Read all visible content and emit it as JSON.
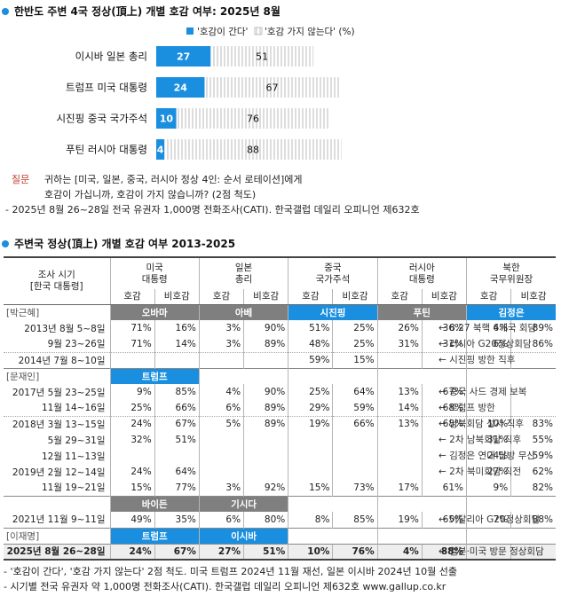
{
  "title1": "한반도 주변 4국 정상(頂上) 개별 호감 여부: 2025년 8월",
  "legend": {
    "fav": "'호감이 간다'",
    "unfav": "'호감 가지 않는다'",
    "unit": "(%)"
  },
  "colors": {
    "fav": "#1a8fe0",
    "label_bg": "#7f7f7f"
  },
  "chart_data": {
    "type": "bar",
    "stacked": true,
    "categories": [
      "이시바 일본 총리",
      "트럼프 미국 대통령",
      "시진핑 중국 국가주석",
      "푸틴 러시아 대통령"
    ],
    "series": [
      {
        "name": "'호감이 간다'",
        "values": [
          27,
          24,
          10,
          4
        ]
      },
      {
        "name": "'호감 가지 않는다'",
        "values": [
          51,
          67,
          76,
          88
        ]
      }
    ],
    "xlim": [
      0,
      100
    ]
  },
  "notes": {
    "q_label": "질문",
    "q_line1": "귀하는 [미국, 일본, 중국, 러시아 정상 4인: 순서 로테이션]에게",
    "q_line2": "호감이 가십니까, 호감이 가지 않습니까? (2점 척도)",
    "survey": "- 2025년 8월 26~28일 전국 유권자 1,000명 전화조사(CATI). 한국갤럽 데일리 오피니언 제632호"
  },
  "title2": "주변국 정상(頂上) 개별 호감 여부 2013-2025",
  "table": {
    "head": {
      "period_l1": "조사 시기",
      "period_l2": "[한국 대통령]",
      "cols": [
        {
          "l1": "미국",
          "l2": "대통령"
        },
        {
          "l1": "일본",
          "l2": "총리"
        },
        {
          "l1": "중국",
          "l2": "국가주석"
        },
        {
          "l1": "러시아",
          "l2": "대통령"
        },
        {
          "l1": "북한",
          "l2": "국무위원장"
        }
      ],
      "fav": "호감",
      "unfav": "비호감"
    },
    "rows": [
      {
        "label": "[박근혜]",
        "kind": "section",
        "leaders": [
          "오바마",
          "아베",
          "시진핑",
          "푸틴",
          "김정은"
        ]
      },
      {
        "label": "2013년 8월 5~8일",
        "cells": [
          "71%",
          "16%",
          "3%",
          "90%",
          "51%",
          "25%",
          "26%",
          "36%",
          "4%",
          "89%"
        ],
        "note": "← 8.27 북핵 6개국 회담"
      },
      {
        "label": "9월 23~26일",
        "cells": [
          "71%",
          "14%",
          "3%",
          "89%",
          "48%",
          "25%",
          "31%",
          "31%",
          "6%",
          "86%"
        ],
        "note": "← 러시아 G20정상회담"
      },
      {
        "label": "2014년 7월 8~10일",
        "cells": [
          "",
          "",
          "",
          "",
          "59%",
          "15%",
          "",
          "",
          "",
          ""
        ],
        "note": "← 시진핑 방한 직후"
      },
      {
        "label": "[문재인]",
        "kind": "section",
        "leaders": [
          "트럼프",
          "",
          "",
          "",
          ""
        ]
      },
      {
        "label": "2017년 5월 23~25일",
        "cells": [
          "9%",
          "85%",
          "4%",
          "90%",
          "25%",
          "64%",
          "13%",
          "67%",
          "",
          ""
        ],
        "note": "← 중국 사드 경제 보복"
      },
      {
        "label": "11월 14~16일",
        "cells": [
          "25%",
          "66%",
          "6%",
          "89%",
          "29%",
          "59%",
          "14%",
          "68%",
          "",
          ""
        ],
        "note": "← 트럼프 방한"
      },
      {
        "label": "2018년 3월 13~15일",
        "cells": [
          "24%",
          "67%",
          "5%",
          "89%",
          "19%",
          "66%",
          "13%",
          "68%",
          "10%",
          "83%"
        ],
        "note": "← 남북회담 성사 직후"
      },
      {
        "label": "5월 29~31일",
        "cells": [
          "32%",
          "51%",
          "",
          "",
          "",
          "",
          "",
          "",
          "31%",
          "55%"
        ],
        "note": "← 2차 남북회담 직후"
      },
      {
        "label": "12월 11~13일",
        "cells": [
          "",
          "",
          "",
          "",
          "",
          "",
          "",
          "",
          "24%",
          "59%"
        ],
        "note": "← 김정은 연내 답방 무산"
      },
      {
        "label": "2019년 2월 12~14일",
        "cells": [
          "24%",
          "64%",
          "",
          "",
          "",
          "",
          "",
          "",
          "27%",
          "62%"
        ],
        "note": "← 2차 북미회담 직전"
      },
      {
        "label": "11월 19~21일",
        "cells": [
          "15%",
          "77%",
          "3%",
          "92%",
          "15%",
          "73%",
          "17%",
          "61%",
          "9%",
          "82%"
        ],
        "note": ""
      },
      {
        "label": "",
        "kind": "section",
        "leaders": [
          "바이든",
          "기시다",
          "",
          "",
          ""
        ]
      },
      {
        "label": "2021년 11월 9~11일",
        "cells": [
          "49%",
          "35%",
          "6%",
          "80%",
          "8%",
          "85%",
          "19%",
          "65%",
          "7%",
          "88%"
        ],
        "note": "← 이탈리아 G20정상회담"
      },
      {
        "label": "[이재명]",
        "kind": "section",
        "leaders": [
          "트럼프",
          "이시바",
          "",
          "",
          ""
        ]
      },
      {
        "label": "2025년 8월 26~28일",
        "cells": [
          "24%",
          "67%",
          "27%",
          "51%",
          "10%",
          "76%",
          "4%",
          "88%",
          "",
          ""
        ],
        "note": "← 일본·미국 방문 정상회담",
        "last": true
      }
    ]
  },
  "footer": {
    "line1": "- '호감이 간다', '호감 가지 않는다' 2점 척도. 미국 트럼프 2024년 11월 재선, 일본 이시바 2024년 10월 선출",
    "line2": "- 시기별 전국 유권자 약 1,000명 전화조사(CATI). 한국갤럽 데일리 오피니언 제632호 www.gallup.co.kr"
  }
}
